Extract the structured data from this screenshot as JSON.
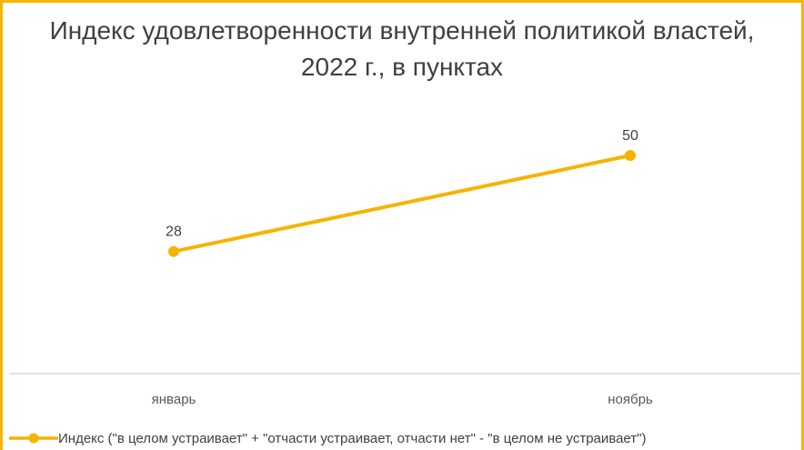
{
  "chart_data": {
    "type": "line",
    "title_lines": [
      "Индекс удовлетворенности внутренней политикой властей,",
      "2022 г., в пунктах"
    ],
    "categories": [
      "январь",
      "ноябрь"
    ],
    "series": [
      {
        "name": "Индекс (\"в целом устраивает\" + \"отчасти устраивает, отчасти нет\" - \"в целом не устраивает\")",
        "values": [
          28,
          50
        ],
        "color": "#f5b400"
      }
    ],
    "data_labels": [
      "28",
      "50"
    ],
    "ylim": [
      0,
      60
    ],
    "grid": false,
    "legend_position": "bottom",
    "axis_color": "#d9d9d9"
  }
}
